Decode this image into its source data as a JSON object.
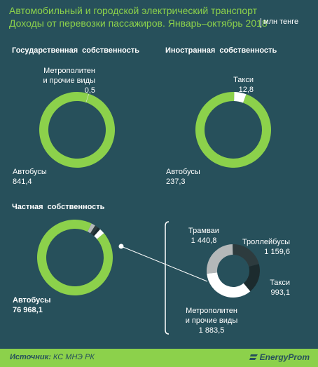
{
  "header": {
    "title_line1": "Автомобильный и городской электрический транспорт",
    "title_line2": "Доходы от перевозки пассажиров. Январь–октябрь 2018",
    "unit": "млн тенге"
  },
  "colors": {
    "background": "#27505b",
    "accent": "#8cd14b"
  },
  "chart_data": [
    {
      "type": "pie",
      "title": "Государственная собственность",
      "categories": [
        "Автобусы",
        "Метрополитен и прочие виды"
      ],
      "values": [
        841.4,
        0.5
      ],
      "value_labels": [
        "841,4",
        "0,5"
      ],
      "label_lines": [
        [
          "Автобусы"
        ],
        [
          "Метрополитен",
          "и прочие виды"
        ]
      ],
      "colors": [
        "#8cd14b",
        "#ffffff"
      ]
    },
    {
      "type": "pie",
      "title": "Иностранная собственность",
      "categories": [
        "Автобусы",
        "Такси"
      ],
      "values": [
        237.3,
        12.8
      ],
      "value_labels": [
        "237,3",
        "12,8"
      ],
      "label_lines": [
        [
          "Автобусы"
        ],
        [
          "Такси"
        ]
      ],
      "colors": [
        "#8cd14b",
        "#ffffff"
      ]
    },
    {
      "type": "pie",
      "title": "Частная собственность",
      "categories": [
        "Автобусы",
        "Трамваи",
        "Троллейбусы",
        "Такси",
        "Метрополитен и прочие виды"
      ],
      "values": [
        76968.1,
        1440.8,
        1159.6,
        993.1,
        1883.5
      ],
      "value_labels": [
        "76 968,1"
      ],
      "label_lines": [
        [
          "Автобусы"
        ]
      ],
      "colors": [
        "#8cd14b",
        "#b4b8b9",
        "#2d3b3e",
        "#1c2b2e",
        "#ffffff"
      ]
    },
    {
      "type": "pie",
      "title": "",
      "categories": [
        "Трамваи",
        "Троллейбусы",
        "Такси",
        "Метрополитен и прочие виды"
      ],
      "values": [
        1440.8,
        1159.6,
        993.1,
        1883.5
      ],
      "value_labels": [
        "1 440,8",
        "1 159,6",
        "993,1",
        "1 883,5"
      ],
      "label_lines": [
        [
          "Трамваи"
        ],
        [
          "Троллейбусы"
        ],
        [
          "Такси"
        ],
        [
          "Метрополитен",
          "и прочие виды"
        ]
      ],
      "colors": [
        "#b4b8b9",
        "#2d3b3e",
        "#1c2b2e",
        "#ffffff"
      ]
    }
  ],
  "footer": {
    "source_label": "Источник:",
    "source_value": "КС МНЭ РК",
    "brand": "EnergyProm"
  }
}
